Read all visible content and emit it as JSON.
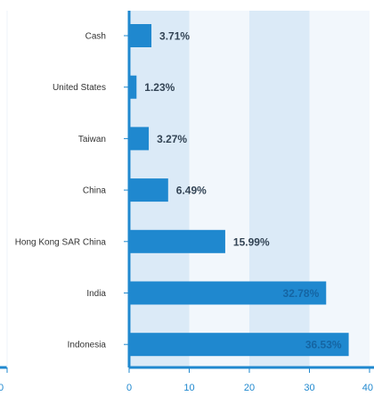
{
  "chart_data": {
    "type": "bar",
    "orientation": "horizontal",
    "categories": [
      "Cash",
      "United States",
      "Taiwan",
      "China",
      "Hong Kong SAR China",
      "India",
      "Indonesia"
    ],
    "values": [
      3.71,
      1.23,
      3.27,
      6.49,
      15.99,
      32.78,
      36.53
    ],
    "value_labels": [
      "3.71%",
      "1.23%",
      "3.27%",
      "6.49%",
      "15.99%",
      "32.78%",
      "36.53%"
    ],
    "xlim": [
      0,
      40
    ],
    "x_ticks": [
      "0",
      "10",
      "20",
      "30",
      "40"
    ],
    "left_panel_tick": "0",
    "grid": "alternating vertical bands",
    "colors": {
      "bar": "#1f88cf",
      "axis": "#1f88cf",
      "band": "#dbeaf7",
      "band_light": "#f2f7fc",
      "label_dark": "#334455",
      "label_inside": "#1565a3"
    }
  }
}
